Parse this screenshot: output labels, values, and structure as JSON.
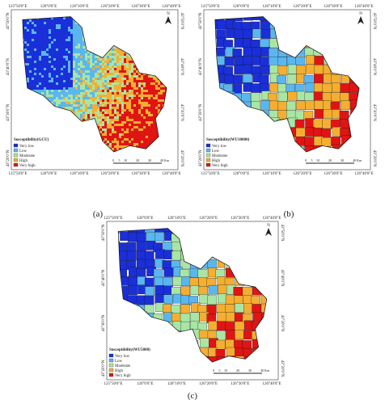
{
  "panels": [
    {
      "caption": "(a)",
      "legend_title": "Susceptibility(GCU)"
    },
    {
      "caption": "(b)",
      "legend_title": "Susceptibility(WU10000)"
    },
    {
      "caption": "(c)",
      "legend_title": "Susceptibility(WU5000)"
    }
  ],
  "legend_items": [
    "Very low",
    "Low",
    "Moderate",
    "High",
    "Very high"
  ],
  "longitude_labels": [
    "125°50'0\"E",
    "126°0'0\"E",
    "126°10'0\"E",
    "126°20'0\"E",
    "126°30'0\"E",
    "126°40'0\"E"
  ],
  "latitude_labels": [
    "43°50'0\"N",
    "43°40'0\"N",
    "43°30'0\"N",
    "43°20'0\"N"
  ],
  "north_label": "N",
  "scale_labels": [
    "0",
    "5",
    "10",
    "20",
    "30",
    "40"
  ],
  "scale_unit": "Km"
}
